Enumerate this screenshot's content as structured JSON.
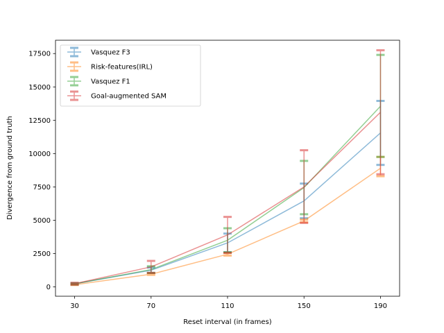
{
  "chart_data": {
    "type": "line",
    "title": "",
    "xlabel": "Reset interval (in frames)",
    "ylabel": "Divergence from ground truth",
    "x": [
      30,
      70,
      110,
      150,
      190
    ],
    "xlim": [
      20,
      200
    ],
    "ylim": [
      -700,
      18500
    ],
    "yticks": [
      0,
      2500,
      5000,
      7500,
      10000,
      12500,
      15000,
      17500
    ],
    "ytick_labels": [
      "0",
      "2500",
      "5000",
      "7500",
      "10000",
      "12500",
      "15000",
      "17500"
    ],
    "xtick_labels": [
      "30",
      "70",
      "110",
      "150",
      "190"
    ],
    "grid": false,
    "legend_position": "top-left",
    "error_bars": true,
    "series": [
      {
        "name": "Vasquez F3",
        "color": "#1f77b4",
        "values": [
          230,
          1250,
          3300,
          6450,
          11550
        ],
        "err_low": [
          200,
          1050,
          2600,
          5150,
          9150
        ],
        "err_high": [
          260,
          1450,
          4000,
          7750,
          13950
        ]
      },
      {
        "name": "Risk-features(IRL)",
        "color": "#ff7f0e",
        "values": [
          160,
          950,
          2450,
          4950,
          8900
        ],
        "err_low": [
          140,
          900,
          2350,
          4850,
          8300
        ],
        "err_high": [
          180,
          1000,
          2550,
          5050,
          9750
        ]
      },
      {
        "name": "Vasquez F1",
        "color": "#2ca02c",
        "values": [
          230,
          1300,
          3500,
          7450,
          13550
        ],
        "err_low": [
          180,
          1050,
          2600,
          5450,
          9750
        ],
        "err_high": [
          280,
          1550,
          4400,
          9450,
          17400
        ]
      },
      {
        "name": "Goal-augmented SAM",
        "color": "#d62728",
        "values": [
          240,
          1500,
          3900,
          7500,
          13100
        ],
        "err_low": [
          170,
          1050,
          2550,
          4800,
          8450
        ],
        "err_high": [
          310,
          1950,
          5250,
          10250,
          17750
        ]
      }
    ]
  }
}
